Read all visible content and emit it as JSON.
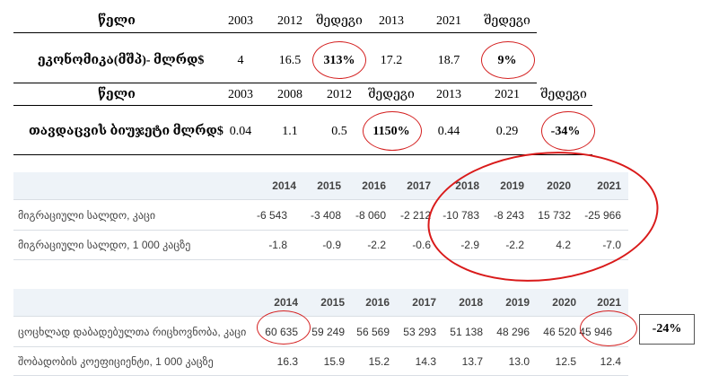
{
  "table1": {
    "header": [
      "წელი",
      "2003",
      "2012",
      "შედეგი",
      "2013",
      "2021",
      "შედეგი"
    ],
    "row": [
      "ეკონომიკა(მშპ)- მლრდ$",
      "4",
      "16.5",
      "313%",
      "17.2",
      "18.7",
      "9%"
    ]
  },
  "table2": {
    "header": [
      "წელი",
      "2003",
      "2008",
      "2012",
      "შედეგი",
      "2013",
      "2021",
      "შედეგი"
    ],
    "row": [
      "თავდაცვის ბიუჯეტი მლრდ$",
      "0.04",
      "1.1",
      "0.5",
      "1150%",
      "0.44",
      "0.29",
      "-34%"
    ]
  },
  "migration": {
    "years": [
      "2014",
      "2015",
      "2016",
      "2017",
      "2018",
      "2019",
      "2020",
      "2021"
    ],
    "rows": [
      {
        "label": "მიგრაციული სალდო, კაცი",
        "values": [
          "-6 543",
          "-3 408",
          "-8 060",
          "-2 212",
          "-10 783",
          "-8 243",
          "15 732",
          "-25 966"
        ]
      },
      {
        "label": "მიგრაციული სალდო, 1 000 კაცზე",
        "values": [
          "-1.8",
          "-0.9",
          "-2.2",
          "-0.6",
          "-2.9",
          "-2.2",
          "4.2",
          "-7.0"
        ]
      }
    ]
  },
  "births": {
    "years": [
      "2014",
      "2015",
      "2016",
      "2017",
      "2018",
      "2019",
      "2020",
      "2021"
    ],
    "rows": [
      {
        "label": "ცოცხლად დაბადებულთა რიცხოვნობა, კაცი",
        "values": [
          "60 635",
          "59 249",
          "56 569",
          "53 293",
          "51 138",
          "48 296",
          "46 520",
          "45 946"
        ]
      },
      {
        "label": "შობადობის კოეფიციენტი, 1 000 კაცზე",
        "values": [
          "16.3",
          "15.9",
          "15.2",
          "14.3",
          "13.7",
          "13.0",
          "12.5",
          "12.4"
        ]
      }
    ],
    "annotation": "-24%"
  }
}
